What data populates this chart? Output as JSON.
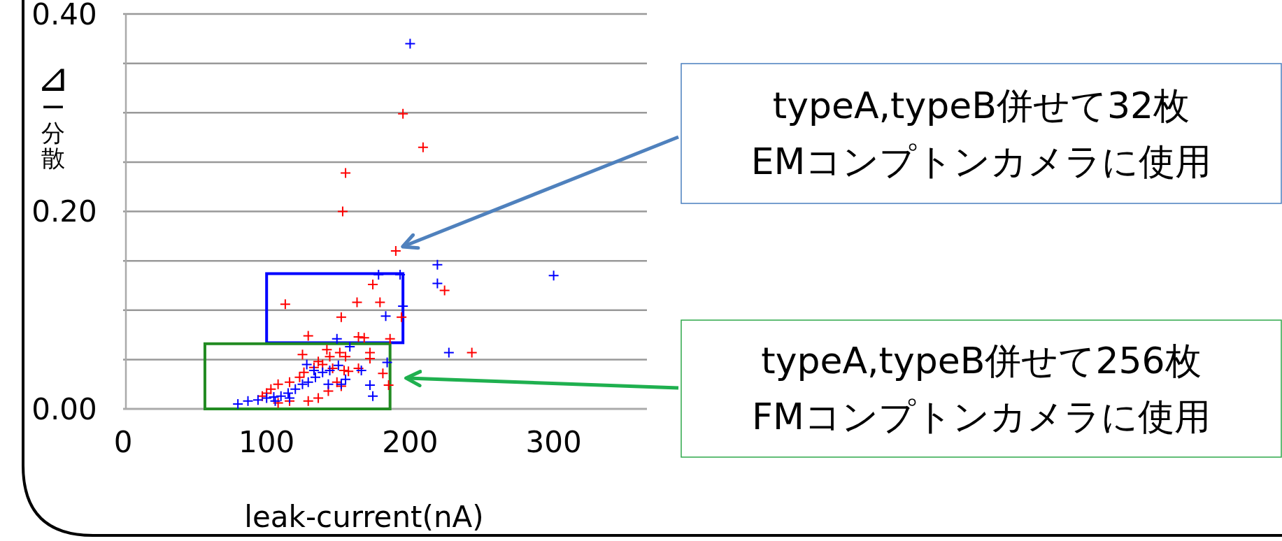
{
  "chart_data": {
    "type": "scatter",
    "ylabel": "⊿ー分散",
    "xlabel": "leak-current(nA)",
    "xlim": [
      0,
      365
    ],
    "ylim": [
      0,
      0.4
    ],
    "xticks": [
      0,
      100,
      200,
      300
    ],
    "yticks": [
      {
        "value": 0,
        "label": "0.00"
      },
      {
        "value": 0.05,
        "label": null
      },
      {
        "value": 0.1,
        "label": null
      },
      {
        "value": 0.15,
        "label": null
      },
      {
        "value": 0.2,
        "label": "0.20"
      },
      {
        "value": 0.25,
        "label": null
      },
      {
        "value": 0.3,
        "label": null
      },
      {
        "value": 0.35,
        "label": null
      },
      {
        "value": 0.4,
        "label": "0.40"
      }
    ],
    "grid": "y",
    "marker": "cross",
    "annotations": [
      "typeA,typeB併せて32枚\nEMコンプトンカメラに使用",
      "typeA,typeB併せて256枚\nFMコンプトンカメラに使用"
    ],
    "series": [
      {
        "color": "#ff0000",
        "x": [
          195,
          209,
          155,
          153,
          190,
          224,
          174,
          113,
          163,
          179,
          194,
          152,
          129,
          164,
          168,
          186,
          243,
          172,
          172,
          125,
          142,
          151,
          155,
          181,
          185,
          164,
          136,
          139,
          133,
          126,
          123,
          116,
          108,
          103,
          100,
          97,
          146,
          154,
          157,
          149,
          152,
          143,
          136,
          129,
          116,
          108,
          144
        ],
        "values": [
          0.299,
          0.265,
          0.239,
          0.2,
          0.16,
          0.12,
          0.126,
          0.106,
          0.108,
          0.108,
          0.093,
          0.093,
          0.074,
          0.073,
          0.072,
          0.071,
          0.057,
          0.057,
          0.051,
          0.055,
          0.06,
          0.057,
          0.053,
          0.036,
          0.024,
          0.041,
          0.048,
          0.045,
          0.042,
          0.037,
          0.032,
          0.027,
          0.025,
          0.02,
          0.016,
          0.013,
          0.041,
          0.039,
          0.038,
          0.027,
          0.023,
          0.018,
          0.011,
          0.008,
          0.008,
          0.006,
          0.053
        ]
      },
      {
        "color": "#0000ff",
        "x": [
          200,
          219,
          219,
          178,
          193,
          195,
          183,
          149,
          158,
          227,
          300,
          184,
          172,
          174,
          166,
          80,
          87,
          94,
          100,
          105,
          110,
          115,
          120,
          125,
          129,
          134,
          139,
          144,
          128,
          133,
          150,
          155,
          152,
          106,
          116,
          143
        ],
        "values": [
          0.37,
          0.146,
          0.127,
          0.136,
          0.136,
          0.104,
          0.094,
          0.071,
          0.063,
          0.057,
          0.135,
          0.047,
          0.024,
          0.013,
          0.039,
          0.005,
          0.008,
          0.009,
          0.011,
          0.012,
          0.013,
          0.016,
          0.02,
          0.025,
          0.027,
          0.032,
          0.037,
          0.039,
          0.045,
          0.039,
          0.044,
          0.03,
          0.025,
          0.008,
          0.011,
          0.025
        ]
      }
    ]
  }
}
